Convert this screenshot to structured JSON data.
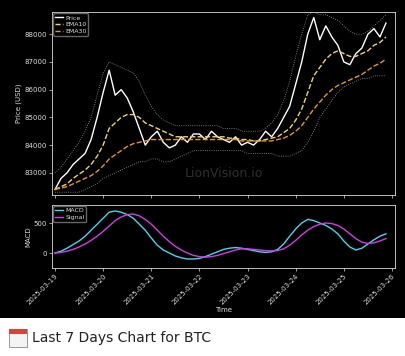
{
  "chart_data": [
    {
      "type": "line",
      "y_label": "Price (USD)",
      "categories": [
        "2025-03-19",
        null,
        null,
        null,
        null,
        null,
        null,
        null,
        "2025-03-20",
        null,
        null,
        null,
        null,
        null,
        null,
        null,
        "2025-03-21",
        null,
        null,
        null,
        null,
        null,
        null,
        null,
        "2025-03-22",
        null,
        null,
        null,
        null,
        null,
        null,
        null,
        "2025-03-23",
        null,
        null,
        null,
        null,
        null,
        null,
        null,
        "2025-03-24",
        null,
        null,
        null,
        null,
        null,
        null,
        null,
        "2025-03-25",
        null,
        null,
        null,
        null,
        null,
        null,
        null,
        "2025-03-26"
      ],
      "series": [
        {
          "color": "#9a9a9a",
          "line_style": "dotted",
          "values": [
            83000,
            83200,
            83500,
            83800,
            84100,
            84500,
            85000,
            85800,
            86600,
            87000,
            86900,
            86800,
            86700,
            86600,
            86300,
            85800,
            85400,
            85100,
            84900,
            84800,
            84700,
            84700,
            84700,
            84700,
            84700,
            84700,
            84700,
            84700,
            84600,
            84600,
            84600,
            84500,
            84500,
            84500,
            84500,
            84600,
            84800,
            85100,
            85600,
            86300,
            87200,
            88000,
            88700,
            88800,
            88700,
            88700,
            88600,
            88500,
            88300,
            88100,
            88000,
            88000,
            88100,
            88300,
            88500,
            88700,
            null
          ]
        },
        {
          "color": "#9a9a9a",
          "line_style": "dotted",
          "values": [
            82300,
            82300,
            82300,
            82300,
            82300,
            82400,
            82500,
            82600,
            82800,
            82900,
            83000,
            83100,
            83200,
            83300,
            83400,
            83400,
            83500,
            83500,
            83400,
            83400,
            83500,
            83600,
            83700,
            83800,
            83800,
            83800,
            83800,
            83800,
            83800,
            83800,
            83800,
            83800,
            83700,
            83700,
            83700,
            83700,
            83700,
            83600,
            83600,
            83600,
            83700,
            83800,
            84100,
            84500,
            85000,
            85300,
            85600,
            85900,
            86100,
            86200,
            86300,
            86400,
            86400,
            86500,
            86500,
            86500,
            null
          ]
        },
        {
          "name": "Price",
          "color": "#ffffff",
          "line_style": "solid",
          "values": [
            82400,
            82800,
            83000,
            83300,
            83500,
            83700,
            84200,
            85000,
            85900,
            86700,
            85800,
            86000,
            85700,
            85200,
            84600,
            84000,
            84300,
            84500,
            84100,
            83900,
            84000,
            84300,
            84100,
            84400,
            84400,
            84200,
            84500,
            84300,
            84200,
            84100,
            84300,
            84000,
            84100,
            84000,
            84200,
            84500,
            84300,
            84600,
            85000,
            85400,
            86200,
            87000,
            88000,
            88600,
            87800,
            88300,
            87900,
            87600,
            87000,
            86900,
            87300,
            87500,
            88000,
            88200,
            87900,
            88400,
            null
          ]
        },
        {
          "name": "EMA10",
          "color": "#f2d46b",
          "line_style": "dashed",
          "values": [
            82400,
            82500,
            82600,
            82800,
            82950,
            83100,
            83300,
            83600,
            84000,
            84600,
            84800,
            85000,
            85100,
            85100,
            85000,
            84800,
            84700,
            84600,
            84500,
            84400,
            84300,
            84300,
            84300,
            84300,
            84300,
            84300,
            84300,
            84300,
            84300,
            84250,
            84250,
            84200,
            84200,
            84150,
            84150,
            84200,
            84250,
            84300,
            84450,
            84600,
            84900,
            85300,
            85900,
            86500,
            86800,
            87100,
            87300,
            87400,
            87300,
            87200,
            87200,
            87300,
            87400,
            87600,
            87700,
            87900,
            null
          ]
        },
        {
          "name": "EMA30",
          "color": "#e8962a",
          "line_style": "dashed",
          "values": [
            82400,
            82450,
            82500,
            82600,
            82700,
            82800,
            82900,
            83050,
            83250,
            83500,
            83650,
            83800,
            83950,
            84050,
            84100,
            84150,
            84200,
            84200,
            84200,
            84200,
            84200,
            84200,
            84200,
            84200,
            84200,
            84200,
            84200,
            84200,
            84200,
            84200,
            84200,
            84150,
            84150,
            84150,
            84150,
            84150,
            84150,
            84200,
            84250,
            84350,
            84500,
            84700,
            85000,
            85300,
            85550,
            85800,
            86000,
            86150,
            86250,
            86350,
            86450,
            86550,
            86700,
            86850,
            86950,
            87100,
            null
          ]
        }
      ],
      "ylim": [
        82200,
        88800
      ],
      "yticks": [
        83000,
        84000,
        85000,
        86000,
        87000,
        88000
      ],
      "grid": false,
      "legend": "upper left",
      "tick_labels": "y"
    },
    {
      "type": "line",
      "x_label": "Time",
      "y_label": "MACD",
      "categories": [
        "2025-03-19",
        null,
        null,
        null,
        null,
        null,
        null,
        null,
        "2025-03-20",
        null,
        null,
        null,
        null,
        null,
        null,
        null,
        "2025-03-21",
        null,
        null,
        null,
        null,
        null,
        null,
        null,
        "2025-03-22",
        null,
        null,
        null,
        null,
        null,
        null,
        null,
        "2025-03-23",
        null,
        null,
        null,
        null,
        null,
        null,
        null,
        "2025-03-24",
        null,
        null,
        null,
        null,
        null,
        null,
        null,
        "2025-03-25",
        null,
        null,
        null,
        null,
        null,
        null,
        null,
        "2025-03-26"
      ],
      "series": [
        {
          "name": "MACD",
          "color": "#3fd8f0",
          "line_style": "solid",
          "values": [
            0,
            30,
            80,
            140,
            200,
            280,
            380,
            480,
            580,
            680,
            700,
            680,
            640,
            580,
            480,
            380,
            250,
            130,
            50,
            0,
            -50,
            -80,
            -100,
            -100,
            -90,
            -60,
            -20,
            20,
            60,
            80,
            90,
            80,
            60,
            40,
            20,
            10,
            20,
            60,
            150,
            280,
            400,
            500,
            560,
            540,
            500,
            460,
            400,
            320,
            200,
            100,
            50,
            80,
            150,
            220,
            280,
            320,
            null
          ]
        },
        {
          "name": "Signal",
          "color": "#d63ae6",
          "line_style": "solid",
          "values": [
            0,
            10,
            30,
            60,
            100,
            150,
            210,
            280,
            360,
            450,
            540,
            600,
            640,
            650,
            620,
            560,
            480,
            380,
            280,
            190,
            110,
            50,
            0,
            -40,
            -60,
            -70,
            -60,
            -40,
            -10,
            20,
            50,
            70,
            70,
            60,
            50,
            40,
            35,
            40,
            70,
            130,
            210,
            300,
            380,
            440,
            480,
            500,
            490,
            460,
            400,
            320,
            240,
            180,
            160,
            170,
            200,
            240,
            null
          ]
        }
      ],
      "ylim": [
        -250,
        800
      ],
      "yticks": [
        0,
        500
      ],
      "grid": false,
      "legend": "upper left",
      "tick_labels": true
    }
  ],
  "watermark": "LionVision.io",
  "caption": "Last 7 Days Chart for BTC"
}
